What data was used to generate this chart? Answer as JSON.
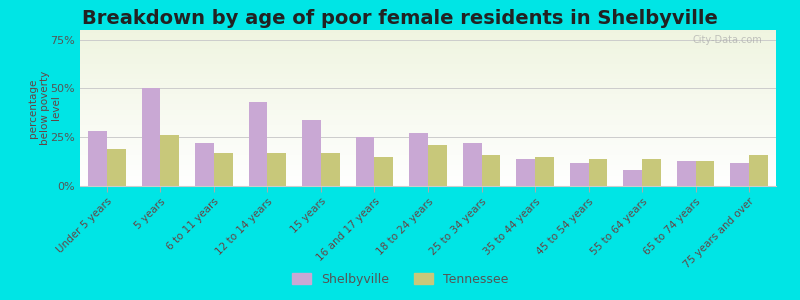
{
  "title": "Breakdown by age of poor female residents in Shelbyville",
  "ylabel": "percentage\nbelow poverty\nlevel",
  "categories": [
    "Under 5 years",
    "5 years",
    "6 to 11 years",
    "12 to 14 years",
    "15 years",
    "16 and 17 years",
    "18 to 24 years",
    "25 to 34 years",
    "35 to 44 years",
    "45 to 54 years",
    "55 to 64 years",
    "65 to 74 years",
    "75 years and over"
  ],
  "shelbyville": [
    28,
    50,
    22,
    43,
    34,
    25,
    27,
    22,
    14,
    12,
    8,
    13,
    12
  ],
  "tennessee": [
    19,
    26,
    17,
    17,
    17,
    15,
    21,
    16,
    15,
    14,
    14,
    13,
    16
  ],
  "shelbyville_color": "#c9a8d4",
  "tennessee_color": "#c8c87a",
  "background_top": "#f0f5e0",
  "background_bottom": "#ffffff",
  "plot_bg": "#e8f0c8",
  "yticks": [
    0,
    25,
    50,
    75
  ],
  "ylim": [
    0,
    80
  ],
  "bar_width": 0.35,
  "title_fontsize": 14,
  "axis_bg": "#00e8e8",
  "legend_shelbyville": "Shelbyville",
  "legend_tennessee": "Tennessee",
  "watermark": "City-Data.com"
}
